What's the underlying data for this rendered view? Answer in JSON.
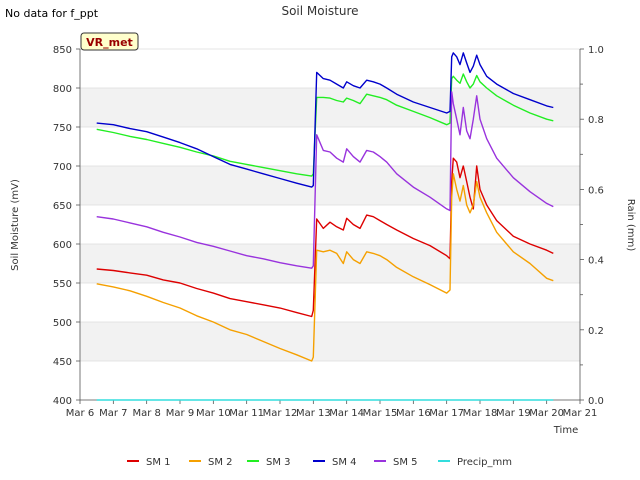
{
  "note": "No data for f_ppt",
  "chart_data": {
    "type": "line",
    "title": "Soil Moisture",
    "xlabel": "Time",
    "ylabel": "Soil Moisture (mV)",
    "y2label": "Rain (mm)",
    "badge": "VR_met",
    "xlim": [
      6,
      21
    ],
    "ylim": [
      400,
      850
    ],
    "y2lim": [
      0,
      1.0
    ],
    "grid": "horizontal bands",
    "legend_position": "bottom",
    "x_tick_labels": [
      "Mar 6",
      "Mar 7",
      "Mar 8",
      "Mar 9",
      "Mar 10",
      "Mar 11",
      "Mar 12",
      "Mar 13",
      "Mar 14",
      "Mar 15",
      "Mar 16",
      "Mar 17",
      "Mar 18",
      "Mar 19",
      "Mar 20",
      "Mar 21"
    ],
    "y_ticks": [
      400,
      450,
      500,
      550,
      600,
      650,
      700,
      750,
      800,
      850
    ],
    "y2_tick_labels": [
      "0.0",
      "0.2",
      "0.4",
      "0.6",
      "0.8",
      "1.0"
    ],
    "colors": {
      "SM 1": "#dd0000",
      "SM 2": "#f5a000",
      "SM 3": "#22ee22",
      "SM 4": "#0000cc",
      "SM 5": "#9933dd",
      "Precip_mm": "#33dddd"
    },
    "series": [
      {
        "name": "SM 1",
        "x": [
          6.5,
          7,
          7.5,
          8,
          8.5,
          9,
          9.5,
          10,
          10.5,
          11,
          11.5,
          12,
          12.5,
          12.95,
          13.0,
          13.1,
          13.3,
          13.5,
          13.7,
          13.9,
          14.0,
          14.2,
          14.4,
          14.6,
          14.8,
          15.0,
          15.2,
          15.5,
          16.0,
          16.5,
          17.0,
          17.1,
          17.15,
          17.2,
          17.3,
          17.4,
          17.5,
          17.6,
          17.7,
          17.8,
          17.9,
          18.0,
          18.2,
          18.5,
          19.0,
          19.5,
          20.0,
          20.2
        ],
        "y": [
          568,
          566,
          563,
          560,
          554,
          550,
          543,
          537,
          530,
          526,
          522,
          518,
          512,
          507,
          515,
          632,
          620,
          628,
          622,
          618,
          633,
          625,
          620,
          637,
          635,
          630,
          625,
          618,
          607,
          598,
          585,
          581,
          680,
          710,
          705,
          685,
          700,
          680,
          660,
          645,
          700,
          670,
          650,
          630,
          610,
          600,
          592,
          588
        ]
      },
      {
        "name": "SM 2",
        "x": [
          6.5,
          7,
          7.5,
          8,
          8.5,
          9,
          9.5,
          10,
          10.5,
          11,
          11.5,
          12,
          12.5,
          12.95,
          13.0,
          13.1,
          13.3,
          13.5,
          13.7,
          13.9,
          14.0,
          14.2,
          14.4,
          14.6,
          14.8,
          15.0,
          15.2,
          15.5,
          16.0,
          16.5,
          17.0,
          17.1,
          17.15,
          17.2,
          17.3,
          17.4,
          17.5,
          17.6,
          17.7,
          17.8,
          17.9,
          18.0,
          18.2,
          18.5,
          19.0,
          19.5,
          20.0,
          20.2
        ],
        "y": [
          549,
          545,
          540,
          533,
          525,
          518,
          508,
          500,
          490,
          484,
          475,
          466,
          458,
          450,
          455,
          592,
          590,
          592,
          588,
          575,
          590,
          580,
          575,
          590,
          588,
          585,
          580,
          570,
          558,
          548,
          537,
          541,
          660,
          690,
          670,
          655,
          675,
          650,
          640,
          650,
          680,
          660,
          640,
          615,
          590,
          575,
          556,
          553
        ]
      },
      {
        "name": "SM 3",
        "x": [
          6.5,
          7,
          7.5,
          8,
          8.5,
          9,
          9.5,
          10,
          10.5,
          11,
          11.5,
          12,
          12.5,
          12.95,
          13.0,
          13.1,
          13.3,
          13.5,
          13.7,
          13.9,
          14.0,
          14.2,
          14.4,
          14.6,
          14.8,
          15.0,
          15.2,
          15.5,
          16.0,
          16.5,
          17.0,
          17.1,
          17.15,
          17.2,
          17.3,
          17.4,
          17.5,
          17.6,
          17.7,
          17.8,
          17.9,
          18.0,
          18.2,
          18.5,
          19.0,
          19.5,
          20.0,
          20.2
        ],
        "y": [
          747,
          743,
          738,
          734,
          729,
          724,
          718,
          713,
          706,
          702,
          698,
          694,
          690,
          687,
          690,
          788,
          788,
          787,
          784,
          782,
          787,
          784,
          780,
          792,
          790,
          788,
          785,
          778,
          770,
          762,
          753,
          755,
          812,
          815,
          810,
          806,
          818,
          808,
          800,
          805,
          816,
          808,
          800,
          790,
          778,
          768,
          760,
          758
        ]
      },
      {
        "name": "SM 4",
        "x": [
          6.5,
          7,
          7.5,
          8,
          8.5,
          9,
          9.5,
          10,
          10.5,
          11,
          11.5,
          12,
          12.5,
          12.95,
          13.0,
          13.1,
          13.3,
          13.5,
          13.7,
          13.9,
          14.0,
          14.2,
          14.4,
          14.6,
          14.8,
          15.0,
          15.2,
          15.5,
          16.0,
          16.5,
          17.0,
          17.1,
          17.15,
          17.2,
          17.3,
          17.4,
          17.5,
          17.6,
          17.7,
          17.8,
          17.9,
          18.0,
          18.2,
          18.5,
          19.0,
          19.5,
          20.0,
          20.2
        ],
        "y": [
          755,
          753,
          748,
          744,
          737,
          730,
          722,
          712,
          702,
          696,
          690,
          684,
          678,
          673,
          675,
          820,
          812,
          810,
          805,
          800,
          808,
          803,
          800,
          810,
          808,
          805,
          800,
          792,
          782,
          775,
          768,
          770,
          840,
          845,
          840,
          830,
          845,
          832,
          820,
          828,
          842,
          830,
          815,
          805,
          793,
          785,
          777,
          775
        ]
      },
      {
        "name": "SM 5",
        "x": [
          6.5,
          7,
          7.5,
          8,
          8.5,
          9,
          9.5,
          10,
          10.5,
          11,
          11.5,
          12,
          12.5,
          12.95,
          13.0,
          13.1,
          13.3,
          13.5,
          13.7,
          13.9,
          14.0,
          14.2,
          14.4,
          14.6,
          14.8,
          15.0,
          15.2,
          15.5,
          16.0,
          16.5,
          17.0,
          17.1,
          17.15,
          17.2,
          17.3,
          17.4,
          17.5,
          17.6,
          17.7,
          17.8,
          17.9,
          18.0,
          18.2,
          18.5,
          19.0,
          19.5,
          20.0,
          20.2
        ],
        "y": [
          635,
          632,
          627,
          622,
          615,
          609,
          602,
          597,
          591,
          585,
          581,
          576,
          572,
          569,
          572,
          740,
          720,
          718,
          710,
          705,
          722,
          712,
          705,
          720,
          718,
          712,
          705,
          690,
          673,
          660,
          645,
          643,
          795,
          780,
          760,
          740,
          775,
          745,
          735,
          760,
          790,
          760,
          735,
          710,
          685,
          667,
          652,
          648
        ]
      },
      {
        "name": "Precip_mm",
        "x": [
          6.5,
          20.2
        ],
        "y": [
          0,
          0
        ],
        "axis": "right"
      }
    ]
  }
}
